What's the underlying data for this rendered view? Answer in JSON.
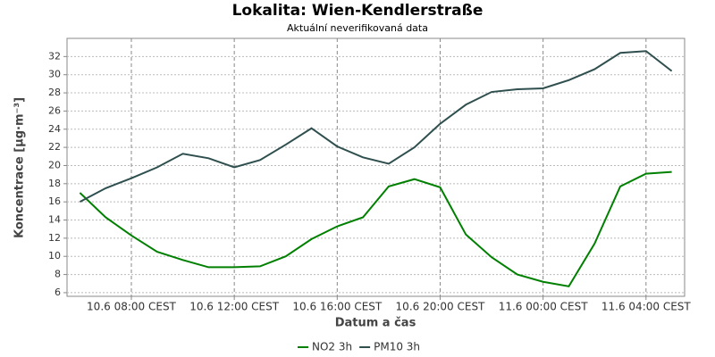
{
  "chart_data": {
    "type": "line",
    "title": "Lokalita: Wien-Kendlerstraße",
    "subtitle": "Aktuální neverifikovaná data",
    "x_label": "Datum a čas",
    "y_label": "Koncentrace [µg·m⁻³]",
    "x": [
      "10.6 06:00",
      "10.6 07:00",
      "10.6 08:00",
      "10.6 09:00",
      "10.6 10:00",
      "10.6 11:00",
      "10.6 12:00",
      "10.6 13:00",
      "10.6 14:00",
      "10.6 15:00",
      "10.6 16:00",
      "10.6 17:00",
      "10.6 18:00",
      "10.6 19:00",
      "10.6 20:00",
      "10.6 21:00",
      "10.6 22:00",
      "10.6 23:00",
      "11.6 00:00",
      "11.6 01:00",
      "11.6 02:00",
      "11.6 03:00",
      "11.6 04:00",
      "11.6 05:00"
    ],
    "series": [
      {
        "name": "NO2 3h",
        "color": "#008000",
        "values": [
          17.0,
          14.3,
          12.3,
          10.5,
          9.6,
          8.8,
          8.8,
          8.9,
          10.0,
          11.9,
          13.3,
          14.3,
          17.7,
          18.5,
          17.6,
          12.4,
          9.9,
          8.0,
          7.2,
          6.7,
          11.4,
          17.7,
          19.1,
          19.3
        ]
      },
      {
        "name": "PM10 3h",
        "color": "#2f4f4f",
        "values": [
          16.0,
          17.5,
          18.6,
          19.8,
          21.3,
          20.8,
          19.8,
          20.6,
          22.3,
          24.1,
          22.1,
          20.9,
          20.2,
          22.0,
          24.6,
          26.7,
          28.1,
          28.4,
          28.5,
          29.4,
          30.6,
          32.4,
          32.6,
          30.4
        ]
      }
    ],
    "xlim": [
      "10.6 05:30",
      "11.6 05:30"
    ],
    "xticks": [
      {
        "value": "10.6 08:00",
        "label": "10.6 08:00 CEST"
      },
      {
        "value": "10.6 12:00",
        "label": "10.6 12:00 CEST"
      },
      {
        "value": "10.6 16:00",
        "label": "10.6 16:00 CEST"
      },
      {
        "value": "10.6 20:00",
        "label": "10.6 20:00 CEST"
      },
      {
        "value": "11.6 00:00",
        "label": "11.6 00:00 CEST"
      },
      {
        "value": "11.6 04:00",
        "label": "11.6 04:00 CEST"
      }
    ],
    "ylim": [
      5.6,
      34
    ],
    "yticks": [
      6,
      8,
      10,
      12,
      14,
      16,
      18,
      20,
      22,
      24,
      26,
      28,
      30,
      32
    ],
    "grid": true,
    "legend": "bottom"
  }
}
